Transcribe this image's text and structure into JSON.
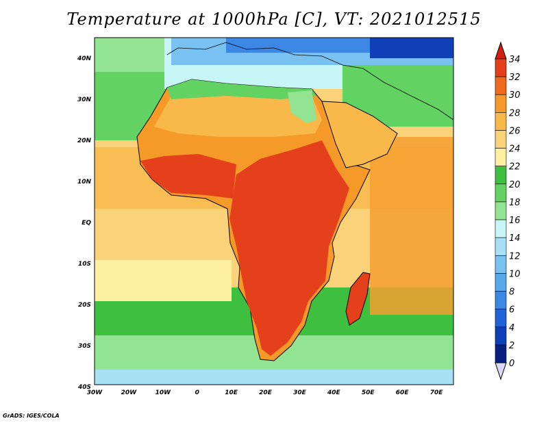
{
  "title": "Temperature at 1000hPa [C], VT: 2021012515",
  "credit": "GrADS: IGES/COLA",
  "map": {
    "lon_range": [
      -30,
      75
    ],
    "lat_range": [
      -40,
      45
    ],
    "lon_ticks": [
      "30W",
      "20W",
      "10W",
      "0",
      "10E",
      "20E",
      "30E",
      "40E",
      "50E",
      "60E",
      "70E"
    ],
    "lat_ticks": [
      "40N",
      "30N",
      "20N",
      "10N",
      "EQ",
      "10S",
      "20S",
      "30S",
      "40S"
    ],
    "ocean_color": "#fad27a",
    "cool_ocean_color": "#46c846",
    "land_hot_color": "#e63c14"
  },
  "colorbar": {
    "levels": [
      "34",
      "32",
      "30",
      "28",
      "26",
      "24",
      "22",
      "20",
      "18",
      "16",
      "14",
      "12",
      "10",
      "8",
      "6",
      "4",
      "2",
      "0"
    ],
    "colors": [
      "#e5401c",
      "#f06a1e",
      "#f59a28",
      "#f8b84a",
      "#fad27a",
      "#fdf0a0",
      "#3fbf3f",
      "#62d262",
      "#92e492",
      "#c8f5f5",
      "#a8e0f5",
      "#78c1f0",
      "#5aa8ec",
      "#3c87e3",
      "#2063d8",
      "#1040b8",
      "#082080"
    ],
    "under_color": "#ddd8f5",
    "over_color": "#d02010"
  }
}
